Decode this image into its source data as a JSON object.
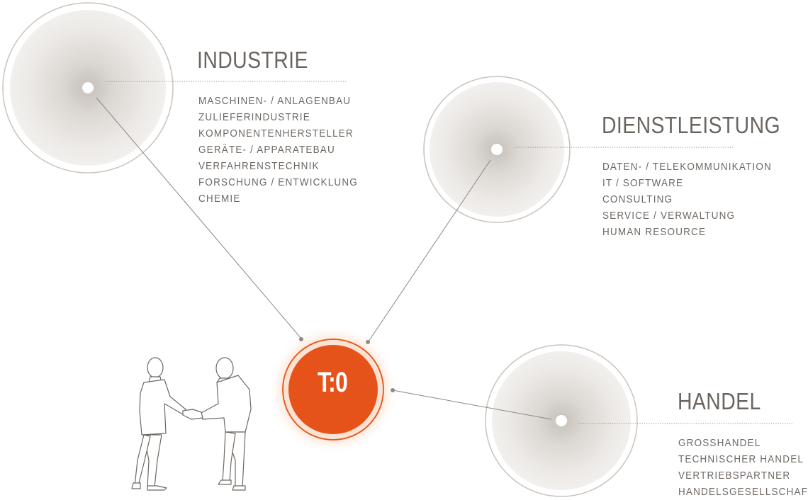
{
  "colors": {
    "accent": "#e5531a",
    "accent_glow": "#f7a173",
    "circle_gray": "#c9c3bd",
    "line_gray": "#8c8782",
    "text_gray": "#6e6863"
  },
  "hub": {
    "label": "T:0"
  },
  "figure": {
    "icon": "handshake-businessmen-icon"
  },
  "sectors": [
    {
      "title": "INDUSTRIE",
      "items": [
        "MASCHINEN- / ANLAGENBAU",
        "ZULIEFERINDUSTRIE",
        "KOMPONENTENHERSTELLER",
        "GERÄTE- / APPARATEBAU",
        "VERFAHRENSTECHNIK",
        "FORSCHUNG / ENTWICKLUNG",
        "CHEMIE"
      ]
    },
    {
      "title": "DIENSTLEISTUNG",
      "items": [
        "DATEN- / TELEKOMMUNIKATION",
        "IT / SOFTWARE",
        "CONSULTING",
        "SERVICE / VERWALTUNG",
        "HUMAN RESOURCE"
      ]
    },
    {
      "title": "HANDEL",
      "items": [
        "GROSSHANDEL",
        "TECHNISCHER HANDEL",
        "VERTRIEBSPARTNER",
        "HANDELSGESELLSCHAFT"
      ]
    }
  ]
}
